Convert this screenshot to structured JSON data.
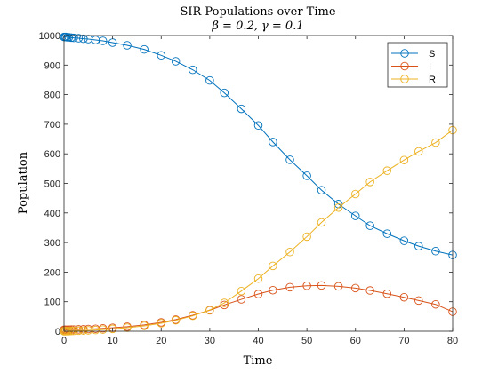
{
  "chart_data": {
    "type": "line",
    "title": "SIR Populations over Time",
    "subtitle": "β = 0.2, γ = 0.1",
    "xlabel": "Time",
    "ylabel": "Population",
    "xlim": [
      0,
      80
    ],
    "ylim": [
      0,
      1000
    ],
    "xticks": [
      0,
      10,
      20,
      30,
      40,
      50,
      60,
      70,
      80
    ],
    "yticks": [
      0,
      100,
      200,
      300,
      400,
      500,
      600,
      700,
      800,
      900,
      1000
    ],
    "grid": false,
    "legend_position": "top-right",
    "x": [
      0,
      0.2,
      0.4,
      0.7,
      1,
      1.5,
      2,
      3,
      4,
      5,
      6.5,
      8,
      10,
      13,
      16.5,
      20,
      23,
      26.5,
      30,
      33,
      36.5,
      40,
      43,
      46.5,
      50,
      53,
      56.5,
      60,
      63,
      66.5,
      70,
      73,
      76.5,
      80
    ],
    "series": [
      {
        "name": "S",
        "color": "#0072BD",
        "values": [
          995,
          995,
          995,
          994,
          994,
          993,
          992,
          991,
          989,
          988,
          985,
          982,
          976,
          967,
          953,
          933,
          913,
          884,
          848,
          806,
          752,
          696,
          640,
          580,
          526,
          477,
          430,
          390,
          357,
          330,
          306,
          288,
          271,
          258
        ]
      },
      {
        "name": "I",
        "color": "#D95319",
        "values": [
          5,
          5,
          5,
          5,
          5.3,
          5.5,
          5.8,
          6.2,
          6.8,
          7.4,
          8.4,
          9.7,
          11.8,
          15.5,
          21.5,
          30,
          39.5,
          54,
          71,
          89,
          108,
          126,
          139,
          149,
          154,
          155,
          152,
          146,
          138,
          127,
          115,
          104,
          91,
          66
        ]
      },
      {
        "name": "R",
        "color": "#EDB120",
        "values": [
          0,
          0.1,
          0.2,
          0.4,
          0.5,
          0.8,
          1.1,
          1.7,
          2.4,
          3,
          4.2,
          5.6,
          8,
          12,
          18,
          27,
          37,
          52,
          72,
          96,
          136,
          178,
          221,
          268,
          320,
          368,
          418,
          464,
          505,
          543,
          579,
          608,
          638,
          680
        ]
      }
    ],
    "marker": "circle",
    "marker_indices": [
      0,
      1,
      2,
      3,
      4,
      5,
      6,
      7,
      8,
      9,
      10,
      11,
      12,
      13,
      14,
      15,
      16,
      17,
      18,
      19,
      20,
      21,
      22,
      23,
      24,
      25,
      26,
      27,
      28,
      29,
      30,
      31,
      32,
      33
    ]
  }
}
